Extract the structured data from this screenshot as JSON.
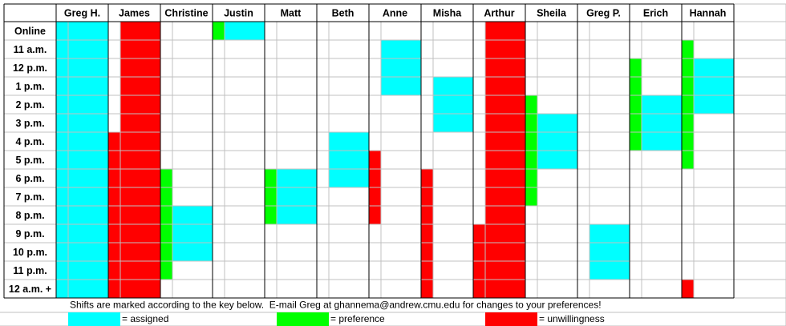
{
  "corner": null,
  "row_labels": [
    "Online",
    "11 a.m.",
    "12 p.m.",
    "1 p.m.",
    "2 p.m.",
    "3 p.m.",
    "4 p.m.",
    "5 p.m.",
    "6 p.m.",
    "7 p.m.",
    "8 p.m.",
    "9 p.m.",
    "10 p.m.",
    "11 p.m.",
    "12 a.m. +"
  ],
  "key": [
    {
      "color": "#00ffff",
      "label": "= assigned"
    },
    {
      "color": "#00ff00",
      "label": "= preference"
    },
    {
      "color": "#ff0000",
      "label": "= unwillingness"
    }
  ],
  "note": "Shifts are marked according to the key below.  E-mail Greg at ghannema@andrew.cmu.edu for changes to your preferences!",
  "people": [
    {
      "name": "Greg H.",
      "strip": [
        0,
        0,
        0,
        0,
        0,
        0,
        0,
        0,
        0,
        0,
        0,
        0,
        0,
        0,
        0
      ],
      "main": [
        0,
        0,
        0,
        0,
        0,
        0,
        0,
        0,
        0,
        0,
        0,
        0,
        0,
        0,
        0
      ]
    },
    {
      "name": "James",
      "strip": [
        null,
        null,
        null,
        null,
        null,
        null,
        2,
        2,
        2,
        2,
        2,
        2,
        2,
        2,
        2
      ],
      "main": [
        2,
        2,
        2,
        2,
        2,
        2,
        2,
        2,
        2,
        2,
        2,
        2,
        2,
        2,
        2
      ]
    },
    {
      "name": "Christine",
      "strip": [
        null,
        null,
        null,
        null,
        null,
        null,
        null,
        null,
        1,
        1,
        1,
        1,
        1,
        1,
        null
      ],
      "main": [
        null,
        null,
        null,
        null,
        null,
        null,
        null,
        null,
        null,
        null,
        0,
        0,
        0,
        null,
        null
      ]
    },
    {
      "name": "Justin",
      "strip": [
        1,
        null,
        null,
        null,
        null,
        null,
        null,
        null,
        null,
        null,
        null,
        null,
        null,
        null,
        null
      ],
      "main": [
        0,
        null,
        null,
        null,
        null,
        null,
        null,
        null,
        null,
        null,
        null,
        null,
        null,
        null,
        null
      ]
    },
    {
      "name": "Matt",
      "strip": [
        null,
        null,
        null,
        null,
        null,
        null,
        null,
        null,
        1,
        1,
        1,
        null,
        null,
        null,
        null
      ],
      "main": [
        null,
        null,
        null,
        null,
        null,
        null,
        null,
        null,
        0,
        0,
        0,
        null,
        null,
        null,
        null
      ]
    },
    {
      "name": "Beth",
      "strip": [
        null,
        null,
        null,
        null,
        null,
        null,
        null,
        null,
        null,
        null,
        null,
        null,
        null,
        null,
        null
      ],
      "main": [
        null,
        null,
        null,
        null,
        null,
        null,
        0,
        0,
        0,
        null,
        null,
        null,
        null,
        null,
        null
      ]
    },
    {
      "name": "Anne",
      "strip": [
        null,
        null,
        null,
        null,
        null,
        null,
        null,
        2,
        2,
        2,
        2,
        null,
        null,
        null,
        null
      ],
      "main": [
        null,
        0,
        0,
        0,
        null,
        null,
        null,
        null,
        null,
        null,
        null,
        null,
        null,
        null,
        null
      ]
    },
    {
      "name": "Misha",
      "strip": [
        null,
        null,
        null,
        null,
        null,
        null,
        null,
        null,
        2,
        2,
        2,
        2,
        2,
        2,
        2
      ],
      "main": [
        null,
        null,
        null,
        0,
        0,
        0,
        null,
        null,
        null,
        null,
        null,
        null,
        null,
        null,
        null
      ]
    },
    {
      "name": "Arthur",
      "strip": [
        null,
        null,
        null,
        null,
        null,
        null,
        null,
        null,
        null,
        null,
        null,
        2,
        2,
        2,
        2
      ],
      "main": [
        2,
        2,
        2,
        2,
        2,
        2,
        2,
        2,
        2,
        2,
        2,
        2,
        2,
        2,
        2
      ]
    },
    {
      "name": "Sheila",
      "strip": [
        null,
        null,
        null,
        null,
        1,
        1,
        1,
        1,
        1,
        1,
        null,
        null,
        null,
        null,
        null
      ],
      "main": [
        null,
        null,
        null,
        null,
        null,
        0,
        0,
        0,
        null,
        null,
        null,
        null,
        null,
        null,
        null
      ]
    },
    {
      "name": "Greg P.",
      "strip": [
        null,
        null,
        null,
        null,
        null,
        null,
        null,
        null,
        null,
        null,
        null,
        null,
        null,
        null,
        null
      ],
      "main": [
        null,
        null,
        null,
        null,
        null,
        null,
        null,
        null,
        null,
        null,
        null,
        0,
        0,
        0,
        null
      ]
    },
    {
      "name": "Erich",
      "strip": [
        null,
        null,
        1,
        1,
        1,
        1,
        1,
        null,
        null,
        null,
        null,
        null,
        null,
        null,
        null
      ],
      "main": [
        null,
        null,
        null,
        null,
        0,
        0,
        0,
        null,
        null,
        null,
        null,
        null,
        null,
        null,
        null
      ]
    },
    {
      "name": "Hannah",
      "strip": [
        null,
        1,
        1,
        1,
        1,
        1,
        1,
        1,
        null,
        null,
        null,
        null,
        null,
        null,
        2
      ],
      "main": [
        null,
        null,
        0,
        0,
        0,
        null,
        null,
        null,
        null,
        null,
        null,
        null,
        null,
        null,
        null
      ]
    }
  ]
}
